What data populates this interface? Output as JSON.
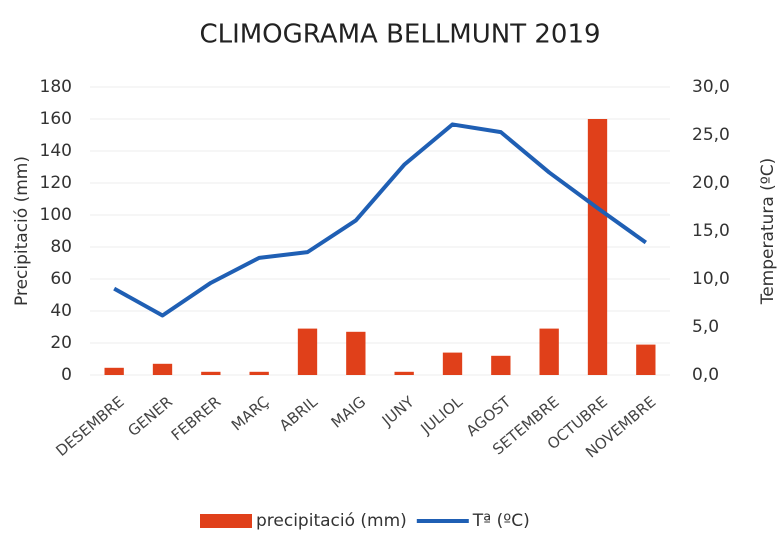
{
  "chart_data": {
    "type": "combo",
    "title": "CLIMOGRAMA BELLMUNT 2019",
    "y_label": "Precipitació (mm)",
    "y2_label": "Temperatura (ºC)",
    "categories": [
      "DESEMBRE",
      "GENER",
      "FEBRER",
      "MARÇ",
      "ABRIL",
      "MAIG",
      "JUNY",
      "JULIOL",
      "AGOST",
      "SETEMBRE",
      "OCTUBRE",
      "NOVEMBRE"
    ],
    "series": [
      {
        "name": "precipitació (mm)",
        "type": "bar",
        "color": "#e0401a",
        "values": [
          4.5,
          7,
          2,
          2,
          29,
          27,
          2,
          14,
          12,
          29,
          160,
          19
        ]
      },
      {
        "name": "Tª (ºC)",
        "type": "line",
        "axis": "y2",
        "color": "#1f5fb4",
        "values": [
          9.0,
          6.2,
          9.6,
          12.2,
          12.8,
          16.1,
          21.9,
          26.1,
          25.3,
          21.1,
          17.4,
          13.8
        ]
      }
    ],
    "ylim": [
      0,
      180
    ],
    "yticks": [
      0,
      20,
      40,
      60,
      80,
      100,
      120,
      140,
      160,
      180
    ],
    "y2lim": [
      0,
      30
    ],
    "y2ticks": [
      {
        "value": 0,
        "label": "0,0"
      },
      {
        "value": 5,
        "label": "5,0"
      },
      {
        "value": 10,
        "label": "10,0"
      },
      {
        "value": 15,
        "label": "15,0"
      },
      {
        "value": 20,
        "label": "20,0"
      },
      {
        "value": 25,
        "label": "25,0"
      },
      {
        "value": 30,
        "label": "30,0"
      }
    ],
    "grid": true,
    "legend": "bottom"
  }
}
